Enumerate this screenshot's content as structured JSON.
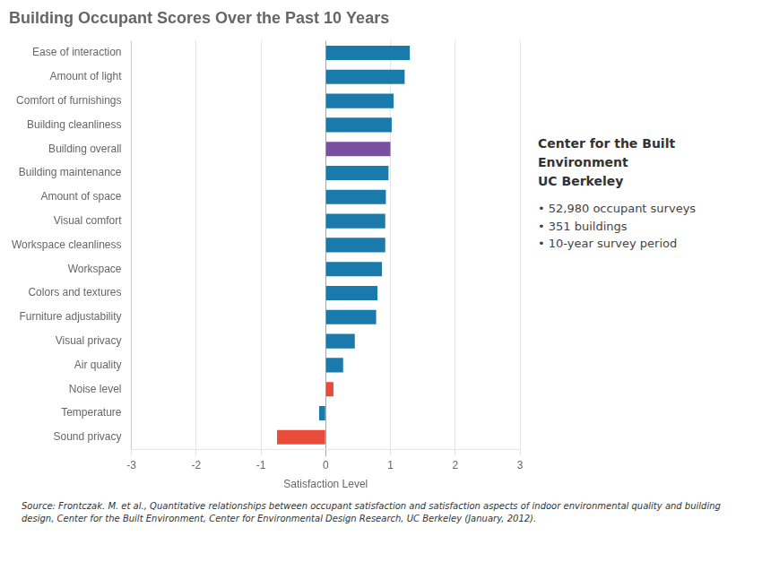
{
  "chart_data": {
    "type": "bar",
    "orientation": "horizontal",
    "title": "Building Occupant Scores Over the Past 10 Years",
    "xlabel": "Satisfaction Level",
    "categories": [
      "Sound privacy",
      "Temperature",
      "Noise level",
      "Air quality",
      "Visual privacy",
      "Furniture adjustability",
      "Colors and textures",
      "Workspace",
      "Workspace cleanliness",
      "Visual comfort",
      "Amount of space",
      "Building maintenance",
      "Building overall",
      "Building cleanliness",
      "Comfort of furnishings",
      "Amount of light",
      "Ease of interaction"
    ],
    "values": [
      -0.75,
      -0.1,
      0.12,
      0.27,
      0.45,
      0.78,
      0.8,
      0.87,
      0.92,
      0.92,
      0.93,
      0.97,
      1.0,
      1.02,
      1.05,
      1.22,
      1.3
    ],
    "colors": [
      "#e84b3a",
      "#1a7aab",
      "#e84b3a",
      "#1a7aab",
      "#1a7aab",
      "#1a7aab",
      "#1a7aab",
      "#1a7aab",
      "#1a7aab",
      "#1a7aab",
      "#1a7aab",
      "#1a7aab",
      "#7b4fa0",
      "#1a7aab",
      "#1a7aab",
      "#1a7aab",
      "#1a7aab"
    ],
    "xlim": [
      -3,
      3
    ],
    "xticks": [
      -3,
      -2,
      -1,
      0,
      1,
      2,
      3
    ],
    "grid": true,
    "annotations": [
      "Center for the Built Environment",
      "UC Berkeley",
      "• 52,980 occupant surveys",
      "• 351 buildings",
      "• 10-year survey period"
    ],
    "source": "Source: Frontczak. M. et al., Quantitative relationships between occupant satisfaction and satisfaction aspects of indoor environmental quality and building design, Center for the Built Environment, Center for Environmental Design Research, UC Berkeley (January, 2012)."
  }
}
